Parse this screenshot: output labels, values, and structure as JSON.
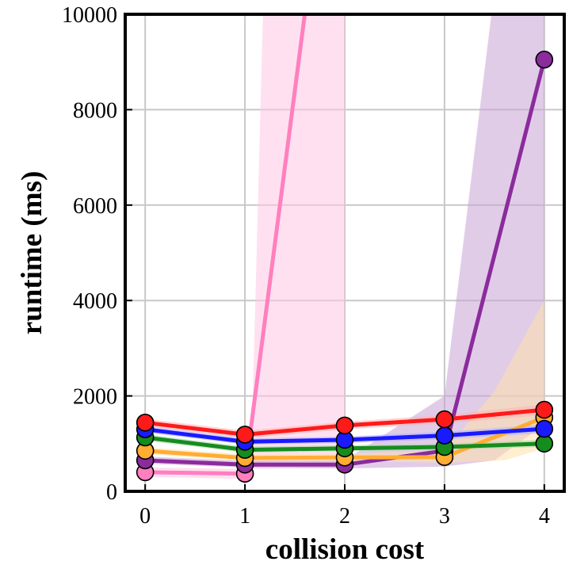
{
  "chart_data": {
    "type": "line",
    "title": "",
    "xlabel": "collision cost",
    "ylabel": "runtime (ms)",
    "x": [
      0,
      1,
      2,
      3,
      4
    ],
    "xlim": [
      -0.2,
      4.2
    ],
    "ylim": [
      0,
      10000
    ],
    "x_ticks": [
      "0",
      "1",
      "2",
      "3",
      "4"
    ],
    "y_ticks": [
      "0",
      "2000",
      "4000",
      "6000",
      "8000",
      "10000"
    ],
    "y_tick_values": [
      0,
      2000,
      4000,
      6000,
      8000,
      10000
    ],
    "grid": true,
    "legend": "none",
    "series": [
      {
        "name": "pink",
        "color": "#ff7fbf",
        "band_color": "#ffc6e4",
        "values": [
          400,
          370,
          null,
          null,
          null
        ],
        "trend_to": [
          1.6,
          10000
        ],
        "band_polygon": [
          [
            0,
            300
          ],
          [
            1,
            260
          ],
          [
            1.07,
            1300
          ],
          [
            1.18,
            10000
          ],
          [
            2.0,
            10000
          ],
          [
            2.0,
            500
          ],
          [
            1,
            470
          ],
          [
            0,
            500
          ]
        ]
      },
      {
        "name": "purple",
        "color": "#8b2b9c",
        "band_color": "#c9a2d6",
        "values": [
          650,
          560,
          560,
          850,
          9050
        ],
        "band_polygon": [
          [
            0,
            580
          ],
          [
            1,
            500
          ],
          [
            2,
            480
          ],
          [
            3,
            520
          ],
          [
            3.5,
            650
          ],
          [
            4,
            1400
          ],
          [
            4,
            10000
          ],
          [
            3.47,
            10000
          ],
          [
            3,
            2000
          ],
          [
            2,
            650
          ],
          [
            1,
            640
          ],
          [
            0,
            730
          ]
        ]
      },
      {
        "name": "orange",
        "color": "#ffad33",
        "band_color": "#ffe0a8",
        "values": [
          850,
          700,
          710,
          720,
          1550
        ],
        "band_polygon": [
          [
            0,
            780
          ],
          [
            1,
            640
          ],
          [
            2,
            640
          ],
          [
            3,
            600
          ],
          [
            3.6,
            650
          ],
          [
            4,
            900
          ],
          [
            4,
            4000
          ],
          [
            3.5,
            2100
          ],
          [
            3,
            850
          ],
          [
            2,
            790
          ],
          [
            1,
            780
          ],
          [
            0,
            920
          ]
        ]
      },
      {
        "name": "green",
        "color": "#168c1f",
        "band_color": "#a8d9a8",
        "values": [
          1130,
          870,
          900,
          930,
          1000
        ],
        "band_polygon": [
          [
            0,
            1060
          ],
          [
            1,
            810
          ],
          [
            2,
            840
          ],
          [
            3,
            870
          ],
          [
            4,
            930
          ],
          [
            4,
            1080
          ],
          [
            3,
            1000
          ],
          [
            2,
            970
          ],
          [
            1,
            940
          ],
          [
            0,
            1200
          ]
        ]
      },
      {
        "name": "blue",
        "color": "#1a1aff",
        "band_color": "#b0b0ff",
        "values": [
          1300,
          1040,
          1080,
          1170,
          1310
        ],
        "band_polygon": [
          [
            0,
            1230
          ],
          [
            1,
            980
          ],
          [
            2,
            1010
          ],
          [
            3,
            1090
          ],
          [
            4,
            1220
          ],
          [
            4,
            1400
          ],
          [
            3,
            1250
          ],
          [
            2,
            1150
          ],
          [
            1,
            1110
          ],
          [
            0,
            1380
          ]
        ]
      },
      {
        "name": "red",
        "color": "#ff1a1a",
        "band_color": "#ffb3b3",
        "values": [
          1440,
          1190,
          1380,
          1510,
          1710
        ],
        "band_polygon": [
          [
            0,
            1360
          ],
          [
            1,
            1110
          ],
          [
            2,
            1300
          ],
          [
            3,
            1420
          ],
          [
            4,
            1600
          ],
          [
            4,
            1820
          ],
          [
            3,
            1600
          ],
          [
            2,
            1460
          ],
          [
            1,
            1270
          ],
          [
            0,
            1520
          ]
        ]
      }
    ]
  }
}
